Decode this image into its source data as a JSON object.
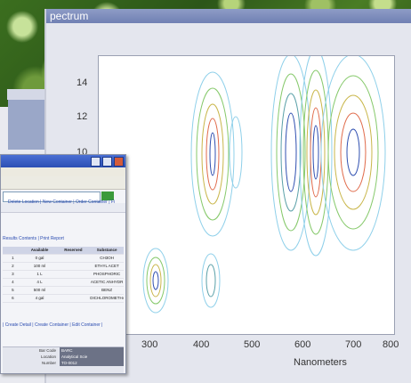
{
  "spectrum_window": {
    "title": "pectrum",
    "y_ticks": [
      "14",
      "12",
      "10"
    ],
    "x_ticks": [
      "300",
      "400",
      "500",
      "600",
      "700",
      "800"
    ],
    "x_label": "Nanometers"
  },
  "browser_window": {
    "links_bar": "Delete Location | New Container | Order Container | Fi",
    "results_links": "Results Contents | Print Report",
    "table": {
      "headers": [
        "",
        "Available",
        "Reserved",
        "Substance"
      ],
      "rows": [
        [
          "1",
          "0 gal",
          "",
          "CH3OH"
        ],
        [
          "2",
          "100 ml",
          "",
          "ETHYL ACET"
        ],
        [
          "3",
          "1 L",
          "",
          "PHOSPHORIC"
        ],
        [
          "4",
          "4 L",
          "",
          "ACETIC ANHYDR"
        ],
        [
          "5",
          "500 ml",
          "",
          "BENZ"
        ],
        [
          "6",
          "4 gal",
          "",
          "DICHLOROMETHAN"
        ]
      ]
    },
    "bottom_links": "| Create Detail | Create Container | Edit Container |",
    "details": [
      {
        "label": "Bar Code",
        "value": "BARC"
      },
      {
        "label": "Location",
        "value": "Analytical Scie"
      },
      {
        "label": "Number",
        "value": "TO-0012"
      }
    ]
  }
}
